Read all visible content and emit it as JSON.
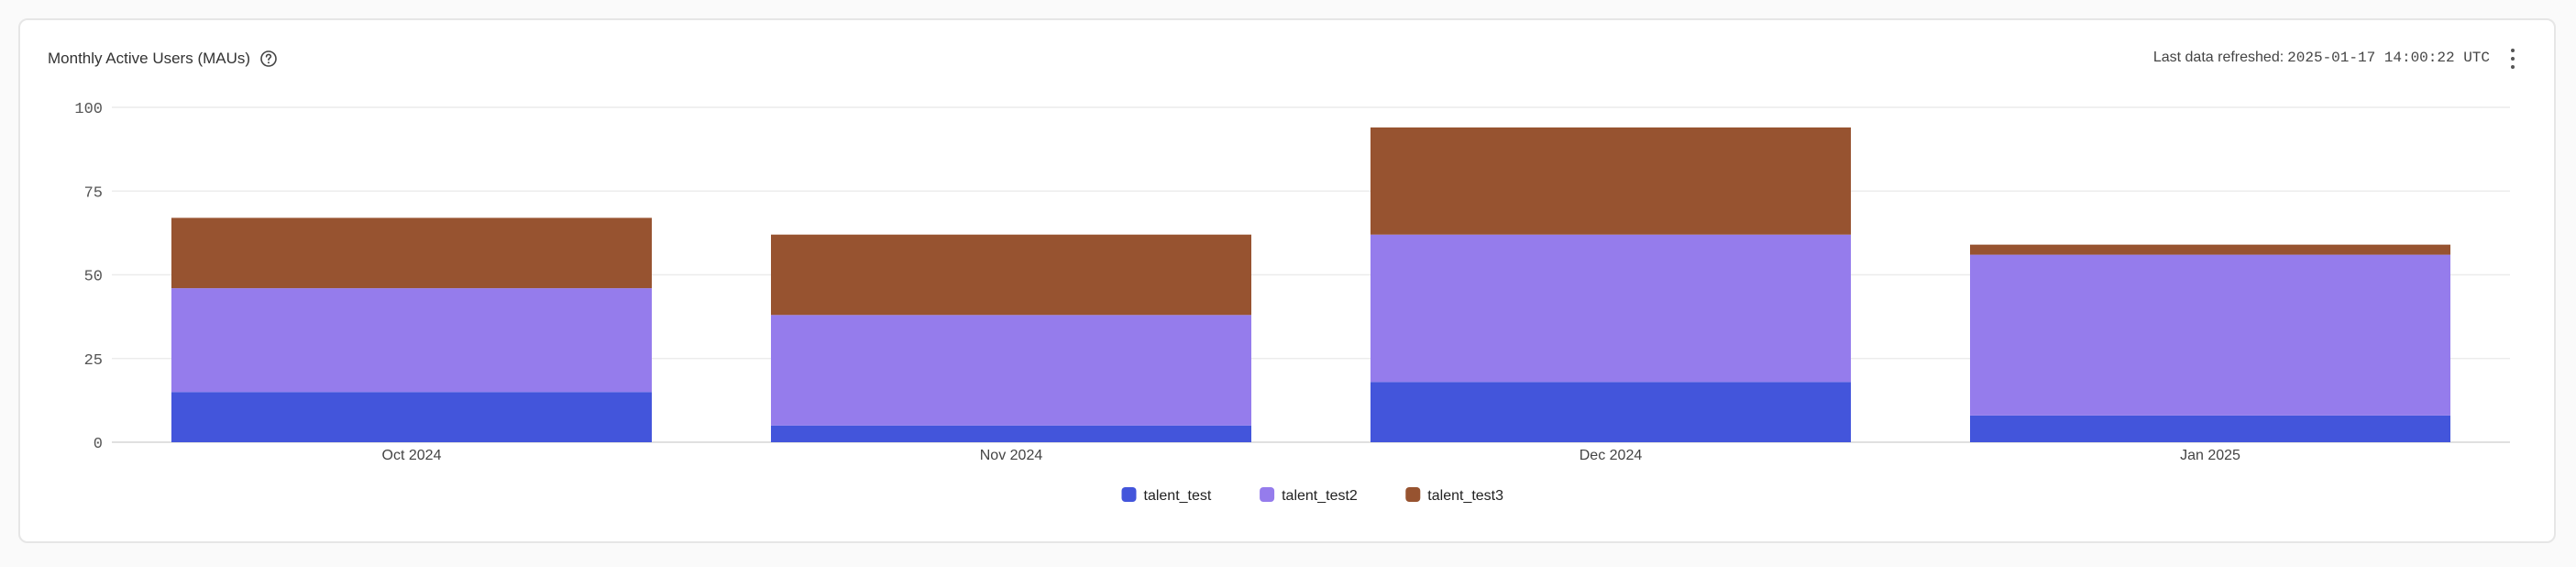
{
  "header": {
    "title": "Monthly Active Users (MAUs)",
    "refresh_label": "Last data refreshed:",
    "refresh_time": "2025-01-17 14:00:22 UTC"
  },
  "colors": {
    "talent_test": "#4355db",
    "talent_test2": "#957cec",
    "talent_test3": "#975330",
    "grid": "#ececec",
    "axis": "#d5d5d5"
  },
  "icons": {
    "help": "help-circle-icon",
    "menu": "more-vertical-icon"
  },
  "chart_data": {
    "type": "bar",
    "stacked": true,
    "categories": [
      "Oct 2024",
      "Nov 2024",
      "Dec 2024",
      "Jan 2025"
    ],
    "series": [
      {
        "name": "talent_test",
        "values": [
          15,
          5,
          18,
          8
        ]
      },
      {
        "name": "talent_test2",
        "values": [
          31,
          33,
          44,
          48
        ]
      },
      {
        "name": "talent_test3",
        "values": [
          21,
          24,
          32,
          3
        ]
      }
    ],
    "ylim": [
      0,
      100
    ],
    "yticks": [
      0,
      25,
      50,
      75,
      100
    ],
    "grid": true,
    "legend": "bottom-center"
  }
}
